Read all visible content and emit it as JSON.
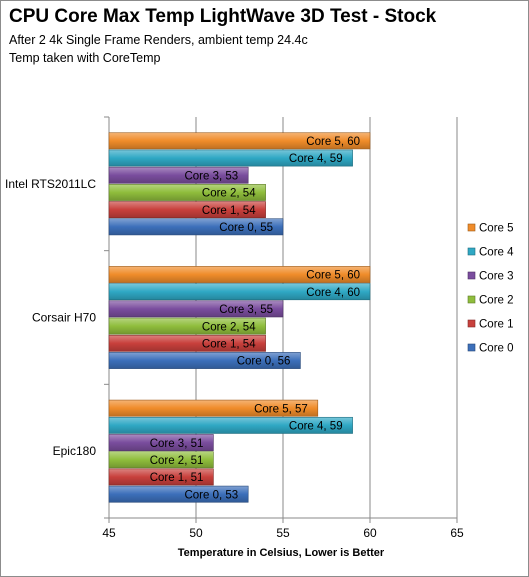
{
  "chart_data": {
    "type": "bar",
    "orientation": "horizontal",
    "title": "CPU Core Max Temp LightWave 3D Test - Stock",
    "subtitle_lines": [
      "After 2 4k Single Frame Renders, ambient temp 24.4c",
      "Temp taken with CoreTemp"
    ],
    "xlabel": "Temperature in Celsius,  Lower is Better",
    "ylabel": "",
    "xlim": [
      45,
      65
    ],
    "xticks": [
      45,
      50,
      55,
      60,
      65
    ],
    "grid": true,
    "legend_position": "right",
    "categories": [
      "Intel RTS2011LC",
      "Corsair H70",
      "Epic180"
    ],
    "series": [
      {
        "name": "Core 5",
        "color": "#f08c2a",
        "values": [
          60,
          60,
          57
        ]
      },
      {
        "name": "Core 4",
        "color": "#2fa8c4",
        "values": [
          59,
          60,
          59
        ]
      },
      {
        "name": "Core 3",
        "color": "#7a4d9e",
        "values": [
          53,
          55,
          51
        ]
      },
      {
        "name": "Core 2",
        "color": "#8fbd3c",
        "values": [
          54,
          54,
          51
        ]
      },
      {
        "name": "Core 1",
        "color": "#c8403c",
        "values": [
          54,
          54,
          51
        ]
      },
      {
        "name": "Core 0",
        "color": "#3c6fba",
        "values": [
          55,
          56,
          53
        ]
      }
    ]
  }
}
